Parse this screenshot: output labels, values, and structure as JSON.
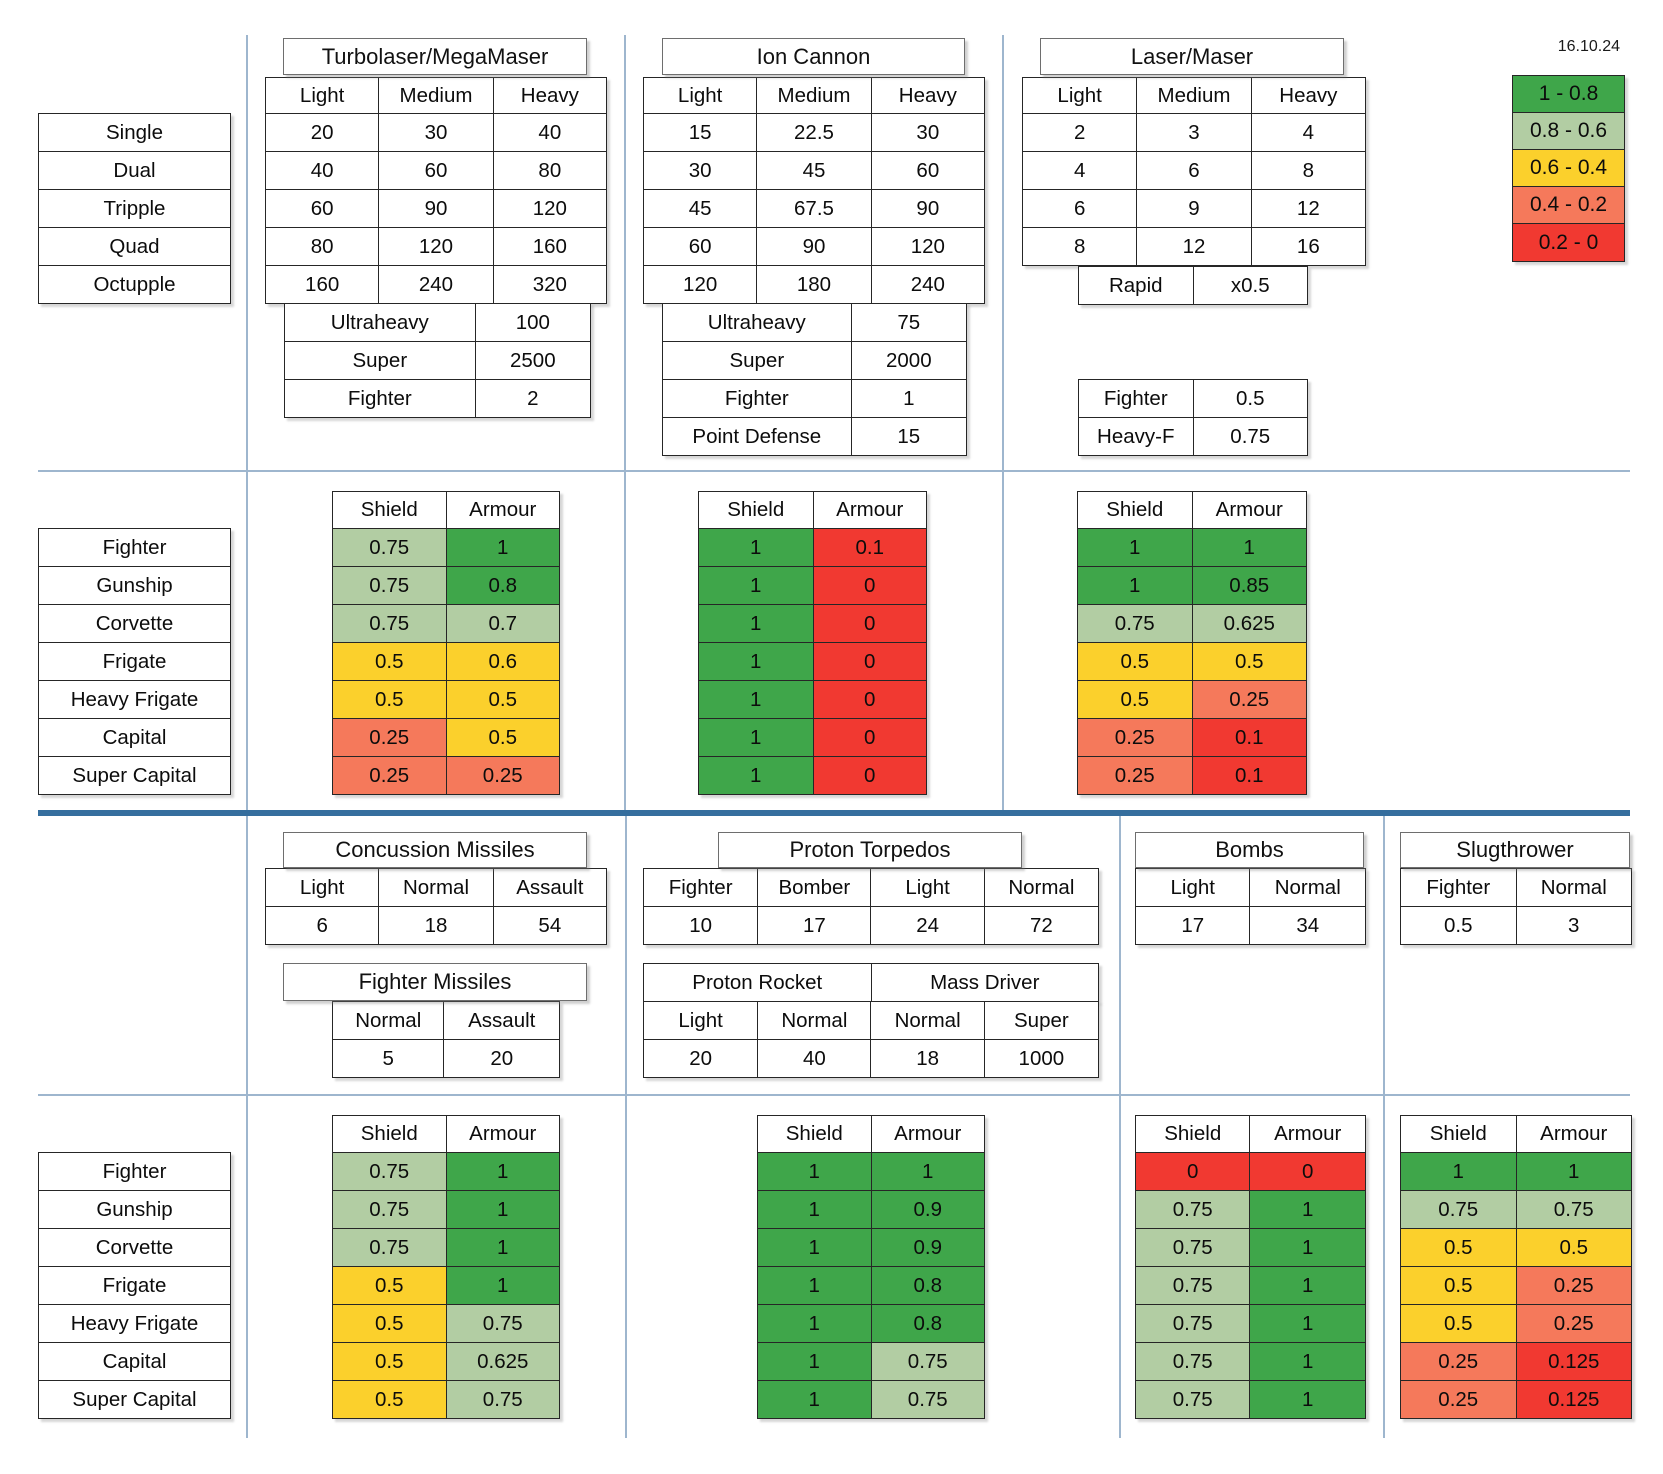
{
  "date": "16.10.24",
  "palette": {
    "g": "#3FA64A",
    "lg": "#B2CDA3",
    "y": "#FBD02C",
    "o": "#F5795B",
    "r": "#F13931"
  },
  "divider_colors": {
    "thin": "#9EB6CE",
    "thick": "#356E9E"
  },
  "legend": [
    {
      "label": "1 - 0.8",
      "c": "g"
    },
    {
      "label": "0.8 - 0.6",
      "c": "lg"
    },
    {
      "label": "0.6 - 0.4",
      "c": "y"
    },
    {
      "label": "0.4 - 0.2",
      "c": "o"
    },
    {
      "label": "0.2 - 0",
      "c": "r"
    }
  ],
  "tables": [
    {
      "id": "mount-types",
      "rows": [
        [
          "Single"
        ],
        [
          "Dual"
        ],
        [
          "Tripple"
        ],
        [
          "Quad"
        ],
        [
          "Octupple"
        ]
      ]
    },
    {
      "id": "turbolaser-title",
      "title": "Turbolaser/MegaMaser"
    },
    {
      "id": "turbolaser-damage",
      "header": [
        "Light",
        "Medium",
        "Heavy"
      ],
      "rows": [
        [
          "20",
          "30",
          "40"
        ],
        [
          "40",
          "60",
          "80"
        ],
        [
          "60",
          "90",
          "120"
        ],
        [
          "80",
          "120",
          "160"
        ],
        [
          "160",
          "240",
          "320"
        ]
      ]
    },
    {
      "id": "turbolaser-extras",
      "rows": [
        [
          "Ultraheavy",
          "100"
        ],
        [
          "Super",
          "2500"
        ],
        [
          "Fighter",
          "2"
        ]
      ]
    },
    {
      "id": "ion-title",
      "title": "Ion Cannon"
    },
    {
      "id": "ion-damage",
      "header": [
        "Light",
        "Medium",
        "Heavy"
      ],
      "rows": [
        [
          "15",
          "22.5",
          "30"
        ],
        [
          "30",
          "45",
          "60"
        ],
        [
          "45",
          "67.5",
          "90"
        ],
        [
          "60",
          "90",
          "120"
        ],
        [
          "120",
          "180",
          "240"
        ]
      ]
    },
    {
      "id": "ion-extras",
      "rows": [
        [
          "Ultraheavy",
          "75"
        ],
        [
          "Super",
          "2000"
        ],
        [
          "Fighter",
          "1"
        ],
        [
          "Point Defense",
          "15"
        ]
      ]
    },
    {
      "id": "laser-title",
      "title": "Laser/Maser"
    },
    {
      "id": "laser-damage",
      "header": [
        "Light",
        "Medium",
        "Heavy"
      ],
      "rows": [
        [
          "2",
          "3",
          "4"
        ],
        [
          "4",
          "6",
          "8"
        ],
        [
          "6",
          "9",
          "12"
        ],
        [
          "8",
          "12",
          "16"
        ]
      ]
    },
    {
      "id": "laser-rapid",
      "rows": [
        [
          "Rapid",
          "x0.5"
        ]
      ]
    },
    {
      "id": "laser-fighter",
      "rows": [
        [
          "Fighter",
          "0.5"
        ],
        [
          "Heavy-F",
          "0.75"
        ]
      ]
    },
    {
      "id": "ship-classes-top",
      "rows": [
        [
          "Fighter"
        ],
        [
          "Gunship"
        ],
        [
          "Corvette"
        ],
        [
          "Frigate"
        ],
        [
          "Heavy Frigate"
        ],
        [
          "Capital"
        ],
        [
          "Super Capital"
        ]
      ]
    },
    {
      "id": "turbolaser-sa",
      "header": [
        "Shield",
        "Armour"
      ],
      "rows": [
        [
          {
            "t": "0.75",
            "c": "lg"
          },
          {
            "t": "1",
            "c": "g"
          }
        ],
        [
          {
            "t": "0.75",
            "c": "lg"
          },
          {
            "t": "0.8",
            "c": "g"
          }
        ],
        [
          {
            "t": "0.75",
            "c": "lg"
          },
          {
            "t": "0.7",
            "c": "lg"
          }
        ],
        [
          {
            "t": "0.5",
            "c": "y"
          },
          {
            "t": "0.6",
            "c": "y"
          }
        ],
        [
          {
            "t": "0.5",
            "c": "y"
          },
          {
            "t": "0.5",
            "c": "y"
          }
        ],
        [
          {
            "t": "0.25",
            "c": "o"
          },
          {
            "t": "0.5",
            "c": "y"
          }
        ],
        [
          {
            "t": "0.25",
            "c": "o"
          },
          {
            "t": "0.25",
            "c": "o"
          }
        ]
      ]
    },
    {
      "id": "ion-sa",
      "header": [
        "Shield",
        "Armour"
      ],
      "rows": [
        [
          {
            "t": "1",
            "c": "g"
          },
          {
            "t": "0.1",
            "c": "r"
          }
        ],
        [
          {
            "t": "1",
            "c": "g"
          },
          {
            "t": "0",
            "c": "r"
          }
        ],
        [
          {
            "t": "1",
            "c": "g"
          },
          {
            "t": "0",
            "c": "r"
          }
        ],
        [
          {
            "t": "1",
            "c": "g"
          },
          {
            "t": "0",
            "c": "r"
          }
        ],
        [
          {
            "t": "1",
            "c": "g"
          },
          {
            "t": "0",
            "c": "r"
          }
        ],
        [
          {
            "t": "1",
            "c": "g"
          },
          {
            "t": "0",
            "c": "r"
          }
        ],
        [
          {
            "t": "1",
            "c": "g"
          },
          {
            "t": "0",
            "c": "r"
          }
        ]
      ]
    },
    {
      "id": "laser-sa",
      "header": [
        "Shield",
        "Armour"
      ],
      "rows": [
        [
          {
            "t": "1",
            "c": "g"
          },
          {
            "t": "1",
            "c": "g"
          }
        ],
        [
          {
            "t": "1",
            "c": "g"
          },
          {
            "t": "0.85",
            "c": "g"
          }
        ],
        [
          {
            "t": "0.75",
            "c": "lg"
          },
          {
            "t": "0.625",
            "c": "lg"
          }
        ],
        [
          {
            "t": "0.5",
            "c": "y"
          },
          {
            "t": "0.5",
            "c": "y"
          }
        ],
        [
          {
            "t": "0.5",
            "c": "y"
          },
          {
            "t": "0.25",
            "c": "o"
          }
        ],
        [
          {
            "t": "0.25",
            "c": "o"
          },
          {
            "t": "0.1",
            "c": "r"
          }
        ],
        [
          {
            "t": "0.25",
            "c": "o"
          },
          {
            "t": "0.1",
            "c": "r"
          }
        ]
      ]
    },
    {
      "id": "concussion-title",
      "title": "Concussion Missiles"
    },
    {
      "id": "concussion-damage",
      "header": [
        "Light",
        "Normal",
        "Assault"
      ],
      "rows": [
        [
          "6",
          "18",
          "54"
        ]
      ]
    },
    {
      "id": "fighter-missiles-title",
      "title": "Fighter Missiles"
    },
    {
      "id": "fighter-missiles-damage",
      "header": [
        "Normal",
        "Assault"
      ],
      "rows": [
        [
          "5",
          "20"
        ]
      ]
    },
    {
      "id": "proton-torpedos-title",
      "title": "Proton Torpedos"
    },
    {
      "id": "proton-torpedos-damage",
      "header": [
        "Fighter",
        "Bomber",
        "Light",
        "Normal"
      ],
      "rows": [
        [
          "10",
          "17",
          "24",
          "72"
        ]
      ]
    },
    {
      "id": "proton-rocket-mass-driver-titles",
      "rows": [
        [
          "Proton Rocket",
          "Mass Driver"
        ]
      ]
    },
    {
      "id": "proton-rocket-mass-driver-damage",
      "header": [
        "Light",
        "Normal",
        "Normal",
        "Super"
      ],
      "rows": [
        [
          "20",
          "40",
          "18",
          "1000"
        ]
      ]
    },
    {
      "id": "bombs-title",
      "title": "Bombs"
    },
    {
      "id": "bombs-damage",
      "header": [
        "Light",
        "Normal"
      ],
      "rows": [
        [
          "17",
          "34"
        ]
      ]
    },
    {
      "id": "slugthrower-title",
      "title": "Slugthrower"
    },
    {
      "id": "slugthrower-damage",
      "header": [
        "Fighter",
        "Normal"
      ],
      "rows": [
        [
          "0.5",
          "3"
        ]
      ]
    },
    {
      "id": "ship-classes-bottom",
      "rows": [
        [
          "Fighter"
        ],
        [
          "Gunship"
        ],
        [
          "Corvette"
        ],
        [
          "Frigate"
        ],
        [
          "Heavy Frigate"
        ],
        [
          "Capital"
        ],
        [
          "Super Capital"
        ]
      ]
    },
    {
      "id": "concussion-sa",
      "header": [
        "Shield",
        "Armour"
      ],
      "rows": [
        [
          {
            "t": "0.75",
            "c": "lg"
          },
          {
            "t": "1",
            "c": "g"
          }
        ],
        [
          {
            "t": "0.75",
            "c": "lg"
          },
          {
            "t": "1",
            "c": "g"
          }
        ],
        [
          {
            "t": "0.75",
            "c": "lg"
          },
          {
            "t": "1",
            "c": "g"
          }
        ],
        [
          {
            "t": "0.5",
            "c": "y"
          },
          {
            "t": "1",
            "c": "g"
          }
        ],
        [
          {
            "t": "0.5",
            "c": "y"
          },
          {
            "t": "0.75",
            "c": "lg"
          }
        ],
        [
          {
            "t": "0.5",
            "c": "y"
          },
          {
            "t": "0.625",
            "c": "lg"
          }
        ],
        [
          {
            "t": "0.5",
            "c": "y"
          },
          {
            "t": "0.75",
            "c": "lg"
          }
        ]
      ]
    },
    {
      "id": "proton-torpedos-sa",
      "header": [
        "Shield",
        "Armour"
      ],
      "rows": [
        [
          {
            "t": "1",
            "c": "g"
          },
          {
            "t": "1",
            "c": "g"
          }
        ],
        [
          {
            "t": "1",
            "c": "g"
          },
          {
            "t": "0.9",
            "c": "g"
          }
        ],
        [
          {
            "t": "1",
            "c": "g"
          },
          {
            "t": "0.9",
            "c": "g"
          }
        ],
        [
          {
            "t": "1",
            "c": "g"
          },
          {
            "t": "0.8",
            "c": "g"
          }
        ],
        [
          {
            "t": "1",
            "c": "g"
          },
          {
            "t": "0.8",
            "c": "g"
          }
        ],
        [
          {
            "t": "1",
            "c": "g"
          },
          {
            "t": "0.75",
            "c": "lg"
          }
        ],
        [
          {
            "t": "1",
            "c": "g"
          },
          {
            "t": "0.75",
            "c": "lg"
          }
        ]
      ]
    },
    {
      "id": "bombs-sa",
      "header": [
        "Shield",
        "Armour"
      ],
      "rows": [
        [
          {
            "t": "0",
            "c": "r"
          },
          {
            "t": "0",
            "c": "r"
          }
        ],
        [
          {
            "t": "0.75",
            "c": "lg"
          },
          {
            "t": "1",
            "c": "g"
          }
        ],
        [
          {
            "t": "0.75",
            "c": "lg"
          },
          {
            "t": "1",
            "c": "g"
          }
        ],
        [
          {
            "t": "0.75",
            "c": "lg"
          },
          {
            "t": "1",
            "c": "g"
          }
        ],
        [
          {
            "t": "0.75",
            "c": "lg"
          },
          {
            "t": "1",
            "c": "g"
          }
        ],
        [
          {
            "t": "0.75",
            "c": "lg"
          },
          {
            "t": "1",
            "c": "g"
          }
        ],
        [
          {
            "t": "0.75",
            "c": "lg"
          },
          {
            "t": "1",
            "c": "g"
          }
        ]
      ]
    },
    {
      "id": "slugthrower-sa",
      "header": [
        "Shield",
        "Armour"
      ],
      "rows": [
        [
          {
            "t": "1",
            "c": "g"
          },
          {
            "t": "1",
            "c": "g"
          }
        ],
        [
          {
            "t": "0.75",
            "c": "lg"
          },
          {
            "t": "0.75",
            "c": "lg"
          }
        ],
        [
          {
            "t": "0.5",
            "c": "y"
          },
          {
            "t": "0.5",
            "c": "y"
          }
        ],
        [
          {
            "t": "0.5",
            "c": "y"
          },
          {
            "t": "0.25",
            "c": "o"
          }
        ],
        [
          {
            "t": "0.5",
            "c": "y"
          },
          {
            "t": "0.25",
            "c": "o"
          }
        ],
        [
          {
            "t": "0.25",
            "c": "o"
          },
          {
            "t": "0.125",
            "c": "r"
          }
        ],
        [
          {
            "t": "0.25",
            "c": "o"
          },
          {
            "t": "0.125",
            "c": "r"
          }
        ]
      ]
    }
  ]
}
